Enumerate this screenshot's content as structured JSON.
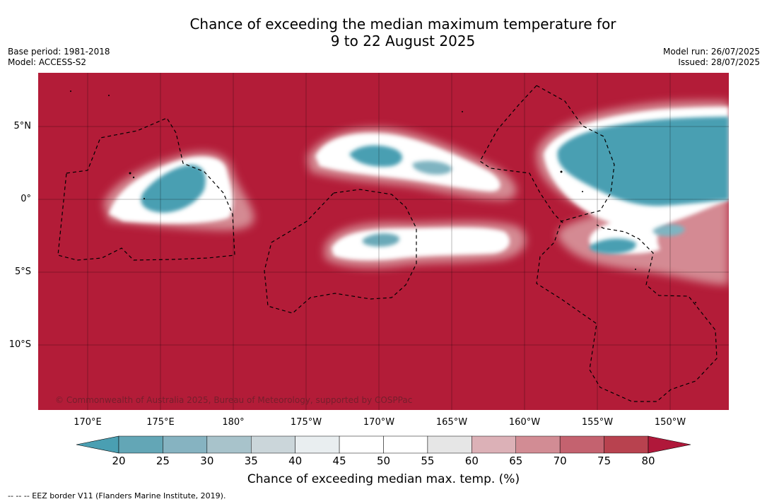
{
  "header": {
    "title_line1": "Chance of exceeding the median maximum temperature for",
    "title_line2": "9 to 22 August 2025",
    "base_period": "Base period: 1981-2018",
    "model": "Model: ACCESS-S2",
    "model_run": "Model run: 26/07/2025",
    "issued": "Issued: 28/07/2025"
  },
  "map": {
    "copyright": "© Commonwealth of Australia 2025, Bureau of Meteorology, supported by COSPPac",
    "lat_labels": [
      "5°N",
      "0°",
      "5°S",
      "10°S"
    ],
    "lon_labels": [
      "170°E",
      "175°E",
      "180°",
      "175°W",
      "170°W",
      "165°W",
      "160°W",
      "155°W",
      "150°W"
    ],
    "colors": {
      "above": "#b31c38",
      "below": "#4a9fb2",
      "neutral": "#ffffff"
    }
  },
  "colorbar": {
    "ticks": [
      "20",
      "25",
      "30",
      "35",
      "40",
      "45",
      "50",
      "55",
      "60",
      "65",
      "70",
      "75",
      "80"
    ],
    "colors": [
      "#63a6b6",
      "#86b3c1",
      "#a8c3cb",
      "#cbd6da",
      "#e9eef0",
      "#ffffff",
      "#ffffff",
      "#e6e6e6",
      "#dcb1b7",
      "#d28c94",
      "#c4626f",
      "#b8424f"
    ],
    "under_color": "#4a9fb2",
    "over_color": "#b0183a",
    "label": "Chance of exceeding median max. temp. (%)"
  },
  "footer": {
    "legend_note": "--  --  -- EEZ border V11 (Flanders Marine Institute, 2019)."
  }
}
